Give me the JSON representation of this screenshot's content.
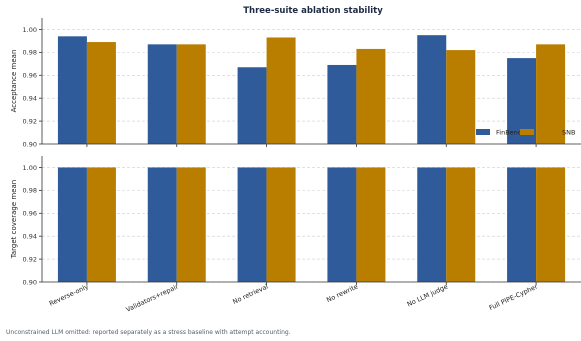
{
  "chart_data": {
    "type": "bar",
    "title": "Three-suite ablation stability",
    "categories": [
      "Reverse-only",
      "Validators+repair",
      "No retrieval",
      "No rewrite",
      "No LLM judge",
      "Full PIPE-Cypher"
    ],
    "colors": {
      "FinBench": "#2f5b9a",
      "SNB": "#b97e00"
    },
    "legend": {
      "placement": "lower-right",
      "entries": [
        "FinBench",
        "SNB"
      ]
    },
    "panels": [
      {
        "ylabel": "Acceptance mean",
        "ylim": [
          0.9,
          1.01
        ],
        "yticks": [
          "0.90",
          "0.92",
          "0.94",
          "0.96",
          "0.98",
          "1.00"
        ],
        "grid": true,
        "series": [
          {
            "name": "FinBench",
            "values": [
              0.994,
              0.987,
              0.967,
              0.969,
              0.995,
              0.975
            ]
          },
          {
            "name": "SNB",
            "values": [
              0.989,
              0.987,
              0.993,
              0.983,
              0.982,
              0.987
            ]
          }
        ]
      },
      {
        "ylabel": "Target coverage mean",
        "ylim": [
          0.9,
          1.01
        ],
        "yticks": [
          "0.90",
          "0.92",
          "0.94",
          "0.96",
          "0.98",
          "1.00"
        ],
        "grid": true,
        "series": [
          {
            "name": "FinBench",
            "values": [
              1.0,
              1.0,
              1.0,
              1.0,
              1.0,
              1.0
            ]
          },
          {
            "name": "SNB",
            "values": [
              1.0,
              1.0,
              1.0,
              1.0,
              1.0,
              1.0
            ]
          }
        ]
      }
    ]
  },
  "footnote": "Unconstrained LLM omitted: reported separately as a stress baseline with attempt accounting."
}
